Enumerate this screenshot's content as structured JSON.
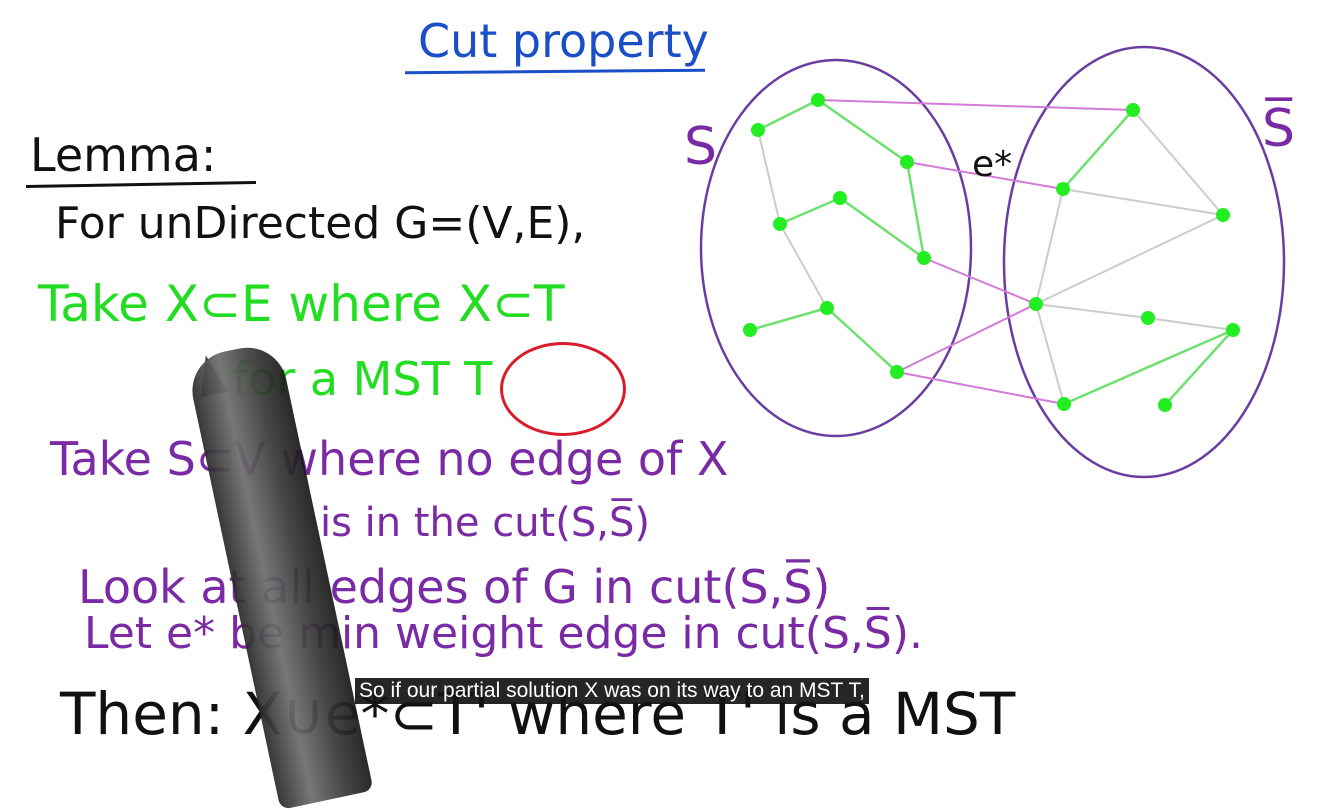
{
  "title": "Cut property",
  "lemma_heading": "Lemma:",
  "lines": [
    "For unDirected G=(V,E),",
    "Take X⊂E where X⊂T",
    "for a MST T",
    "Take S⊂V where no edge of X",
    "is in the cut(S,S̅)",
    "Look at all edges of G in cut(S,S̅)",
    "Let e* be min weight edge in cut(S,S̅).",
    "Then: X∪e*⊂T' where T' is a MST"
  ],
  "graph": {
    "left_set_label": "S",
    "right_set_label": "S̅",
    "edge_label": "e*"
  },
  "caption": "So if our partial solution X was on its way to an MST T,",
  "colors": {
    "title": "#1b4fc7",
    "green": "#22dd22",
    "purple": "#7b2aa5",
    "red": "#d81c2a",
    "black": "#111111"
  }
}
